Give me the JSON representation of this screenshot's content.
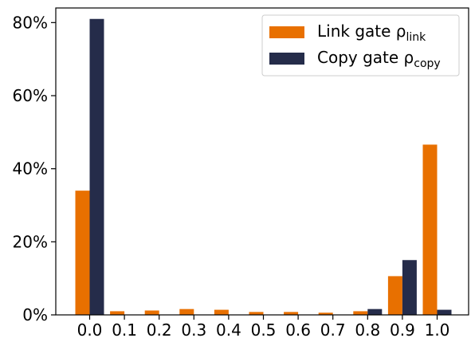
{
  "chart_data": {
    "type": "bar",
    "categories": [
      "0.0",
      "0.1",
      "0.2",
      "0.3",
      "0.4",
      "0.5",
      "0.6",
      "0.7",
      "0.8",
      "0.9",
      "1.0"
    ],
    "series": [
      {
        "name": "Link gate ρlink",
        "name_main": "Link gate ρ",
        "name_sub": "link",
        "color": "#E87000",
        "values": [
          34.0,
          1.0,
          1.2,
          1.6,
          1.4,
          0.8,
          0.8,
          0.6,
          1.0,
          10.6,
          46.6
        ]
      },
      {
        "name": "Copy gate ρcopy",
        "name_main": "Copy gate ρ",
        "name_sub": "copy",
        "color": "#252C4A",
        "values": [
          81.0,
          0,
          0,
          0,
          0,
          0,
          0,
          0,
          1.6,
          15.0,
          1.4
        ]
      }
    ],
    "ylim": [
      0,
      84
    ],
    "yticks": [
      0,
      20,
      40,
      60,
      80
    ],
    "ytick_labels": [
      "0%",
      "20%",
      "40%",
      "60%",
      "80%"
    ],
    "legend_position": "top-right",
    "grid": false
  }
}
